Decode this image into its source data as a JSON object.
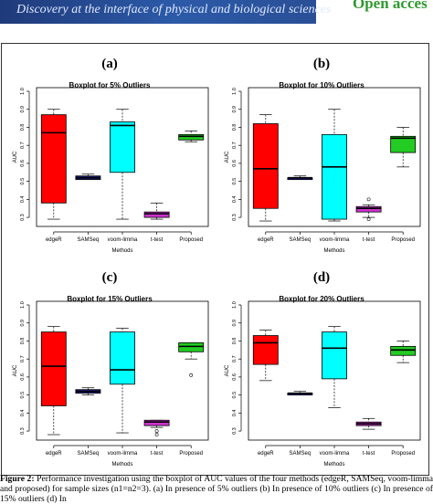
{
  "header": {
    "banner_text": "Discovery at the interface of physical and biological sciences",
    "open_access": "Open acces"
  },
  "caption": {
    "label": "Figure 2:",
    "text": " Performance investigation using the boxplot of AUC values of the four methods (edgeR, SAMSeq, voom-limma and proposed) for sample sizes (n1=n2=3). (a) In presence of 5% outliers (b) In presence of 10% outliers (c) In presence of 15% outliers (d) In"
  },
  "colors": {
    "edgeR": "#ff0000",
    "SAMSeq": "#1a1a8c",
    "voom-limma": "#00ffff",
    "t-test": "#cc33cc",
    "Proposed": "#22cc22"
  },
  "chart_data": [
    {
      "type": "boxplot",
      "panel_label": "(a)",
      "title": "Boxplot for 5% Outliers",
      "xlabel": "Methods",
      "ylabel": "AUC",
      "ylim": [
        0.27,
        1.0
      ],
      "yticks": [
        0.3,
        0.4,
        0.5,
        0.6,
        0.7,
        0.8,
        0.9,
        1.0
      ],
      "categories": [
        "edgeR",
        "SAMSeq",
        "voom-limma",
        "t-test",
        "Proposed"
      ],
      "boxes": [
        {
          "min": 0.29,
          "q1": 0.38,
          "median": 0.77,
          "q3": 0.87,
          "max": 0.9,
          "outliers": []
        },
        {
          "min": 0.51,
          "q1": 0.51,
          "median": 0.52,
          "q3": 0.53,
          "max": 0.54,
          "outliers": []
        },
        {
          "min": 0.29,
          "q1": 0.55,
          "median": 0.81,
          "q3": 0.83,
          "max": 0.9,
          "outliers": []
        },
        {
          "min": 0.29,
          "q1": 0.3,
          "median": 0.32,
          "q3": 0.33,
          "max": 0.38,
          "outliers": []
        },
        {
          "min": 0.72,
          "q1": 0.73,
          "median": 0.75,
          "q3": 0.76,
          "max": 0.78,
          "outliers": []
        }
      ]
    },
    {
      "type": "boxplot",
      "panel_label": "(b)",
      "title": "Boxplot for 10% Outliers",
      "xlabel": "Methods",
      "ylabel": "AUC",
      "ylim": [
        0.27,
        1.0
      ],
      "yticks": [
        0.3,
        0.4,
        0.5,
        0.6,
        0.7,
        0.8,
        0.9,
        1.0
      ],
      "categories": [
        "edgeR",
        "SAMSeq",
        "voom-limma",
        "t-test",
        "Proposed"
      ],
      "boxes": [
        {
          "min": 0.28,
          "q1": 0.35,
          "median": 0.57,
          "q3": 0.82,
          "max": 0.87,
          "outliers": []
        },
        {
          "min": 0.51,
          "q1": 0.51,
          "median": 0.52,
          "q3": 0.52,
          "max": 0.53,
          "outliers": []
        },
        {
          "min": 0.28,
          "q1": 0.29,
          "median": 0.58,
          "q3": 0.76,
          "max": 0.9,
          "outliers": []
        },
        {
          "min": 0.3,
          "q1": 0.33,
          "median": 0.35,
          "q3": 0.36,
          "max": 0.37,
          "outliers": [
            0.4,
            0.29
          ]
        },
        {
          "min": 0.58,
          "q1": 0.66,
          "median": 0.74,
          "q3": 0.75,
          "max": 0.8,
          "outliers": []
        }
      ]
    },
    {
      "type": "boxplot",
      "panel_label": "(c)",
      "title": "Boxplot for 15% Outliers",
      "xlabel": "Methods",
      "ylabel": "AUC",
      "ylim": [
        0.27,
        1.0
      ],
      "yticks": [
        0.3,
        0.4,
        0.5,
        0.6,
        0.7,
        0.8,
        0.9,
        1.0
      ],
      "categories": [
        "edgeR",
        "SAMSeq",
        "voom-limma",
        "t-test",
        "Proposed"
      ],
      "boxes": [
        {
          "min": 0.28,
          "q1": 0.44,
          "median": 0.66,
          "q3": 0.85,
          "max": 0.88,
          "outliers": []
        },
        {
          "min": 0.5,
          "q1": 0.51,
          "median": 0.52,
          "q3": 0.53,
          "max": 0.54,
          "outliers": []
        },
        {
          "min": 0.29,
          "q1": 0.56,
          "median": 0.64,
          "q3": 0.85,
          "max": 0.87,
          "outliers": []
        },
        {
          "min": 0.32,
          "q1": 0.33,
          "median": 0.35,
          "q3": 0.36,
          "max": 0.36,
          "outliers": [
            0.3,
            0.28
          ]
        },
        {
          "min": 0.7,
          "q1": 0.74,
          "median": 0.77,
          "q3": 0.79,
          "max": 0.79,
          "outliers": [
            0.61
          ]
        }
      ]
    },
    {
      "type": "boxplot",
      "panel_label": "(d)",
      "title": "Boxplot for 20% Outliers",
      "xlabel": "Methods",
      "ylabel": "AUC",
      "ylim": [
        0.27,
        1.0
      ],
      "yticks": [
        0.3,
        0.4,
        0.5,
        0.6,
        0.7,
        0.8,
        0.9,
        1.0
      ],
      "categories": [
        "edgeR",
        "SAMSeq",
        "voom-limma",
        "t-test",
        "Proposed"
      ],
      "boxes": [
        {
          "min": 0.58,
          "q1": 0.67,
          "median": 0.79,
          "q3": 0.83,
          "max": 0.86,
          "outliers": []
        },
        {
          "min": 0.5,
          "q1": 0.5,
          "median": 0.51,
          "q3": 0.51,
          "max": 0.52,
          "outliers": []
        },
        {
          "min": 0.43,
          "q1": 0.59,
          "median": 0.76,
          "q3": 0.85,
          "max": 0.88,
          "outliers": []
        },
        {
          "min": 0.31,
          "q1": 0.33,
          "median": 0.34,
          "q3": 0.35,
          "max": 0.37,
          "outliers": []
        },
        {
          "min": 0.68,
          "q1": 0.72,
          "median": 0.75,
          "q3": 0.77,
          "max": 0.8,
          "outliers": []
        }
      ]
    }
  ]
}
